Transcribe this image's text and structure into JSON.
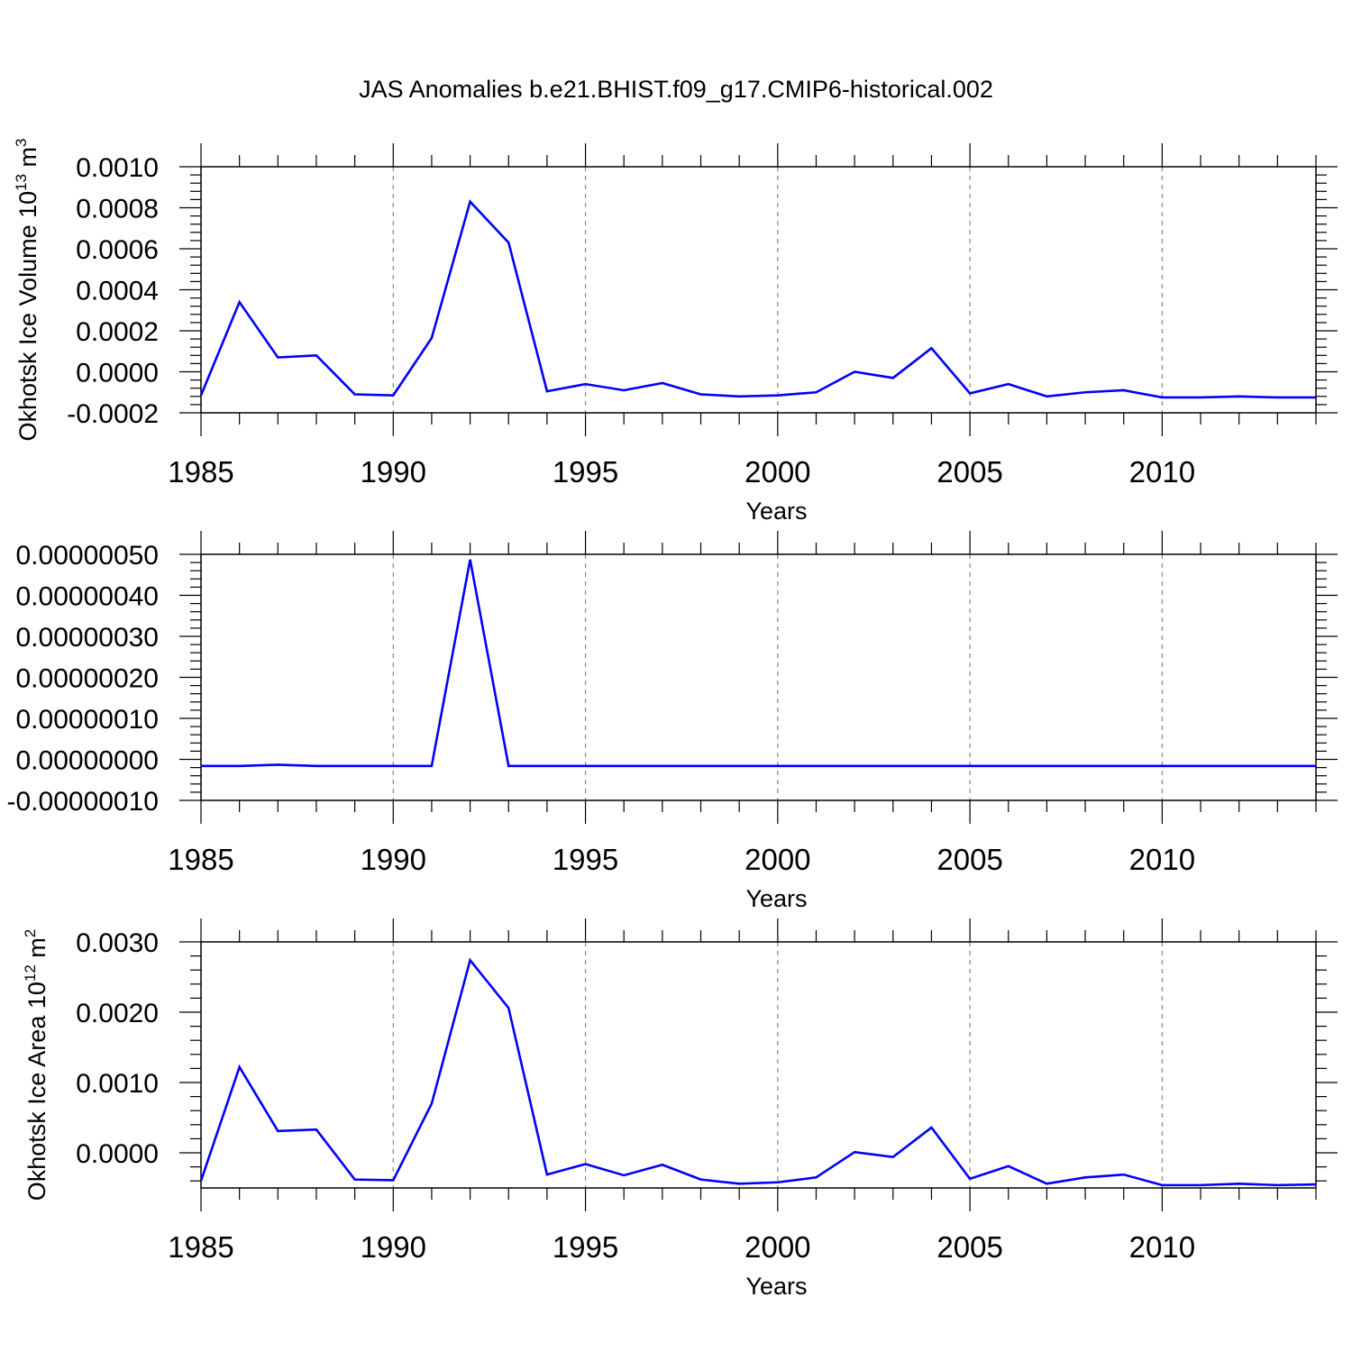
{
  "title": "JAS Anomalies b.e21.BHIST.f09_g17.CMIP6-historical.002",
  "chart_data": [
    {
      "type": "line",
      "ylabel": {
        "main": "Okhotsk Ice Volume 10",
        "sup": "13",
        "unit": " m",
        "unit_sup": "3"
      },
      "xlabel": "Years",
      "xlim": [
        1985,
        2014
      ],
      "ylim": [
        -0.0002,
        0.001
      ],
      "x_ticks": [
        "1985",
        "1990",
        "1995",
        "2000",
        "2005",
        "2010"
      ],
      "y_ticks": [
        "-0.0002",
        "0.0000",
        "0.0002",
        "0.0004",
        "0.0006",
        "0.0008",
        "0.0010"
      ],
      "grid": "dashed vertical at major x ticks",
      "series": [
        {
          "color": "#0000ff",
          "x": [
            1985,
            1986,
            1987,
            1988,
            1989,
            1990,
            1991,
            1992,
            1993,
            1994,
            1995,
            1996,
            1997,
            1998,
            1999,
            2000,
            2001,
            2002,
            2003,
            2004,
            2005,
            2006,
            2007,
            2008,
            2009,
            2010,
            2011,
            2012,
            2013,
            2014
          ],
          "y": [
            -0.000115,
            0.00034,
            7e-05,
            8e-05,
            -0.00011,
            -0.000115,
            0.000165,
            0.00083,
            0.00063,
            -9.5e-05,
            -6e-05,
            -9e-05,
            -5.5e-05,
            -0.00011,
            -0.00012,
            -0.000115,
            -0.0001,
            0.0,
            -3e-05,
            0.000115,
            -0.000105,
            -6e-05,
            -0.00012,
            -0.0001,
            -9e-05,
            -0.000125,
            -0.000125,
            -0.00012,
            -0.000125,
            -0.000125
          ]
        }
      ]
    },
    {
      "type": "line",
      "xlabel": "Years",
      "xlim": [
        1985,
        2014
      ],
      "ylim": [
        -1e-07,
        5e-07
      ],
      "x_ticks": [
        "1985",
        "1990",
        "1995",
        "2000",
        "2005",
        "2010"
      ],
      "y_ticks": [
        "-0.00000010",
        "0.00000000",
        "0.00000010",
        "0.00000020",
        "0.00000030",
        "0.00000040",
        "0.00000050"
      ],
      "grid": "dashed vertical at major x ticks",
      "series": [
        {
          "color": "#0000ff",
          "x": [
            1985,
            1986,
            1987,
            1988,
            1989,
            1990,
            1991,
            1992,
            1993,
            1994,
            1995,
            1996,
            1997,
            1998,
            1999,
            2000,
            2001,
            2002,
            2003,
            2004,
            2005,
            2006,
            2007,
            2008,
            2009,
            2010,
            2011,
            2012,
            2013,
            2014
          ],
          "y": [
            -1.6e-08,
            -1.6e-08,
            -1.3e-08,
            -1.6e-08,
            -1.6e-08,
            -1.6e-08,
            -1.6e-08,
            4.87e-07,
            -1.6e-08,
            -1.6e-08,
            -1.6e-08,
            -1.6e-08,
            -1.6e-08,
            -1.6e-08,
            -1.6e-08,
            -1.6e-08,
            -1.6e-08,
            -1.6e-08,
            -1.6e-08,
            -1.6e-08,
            -1.6e-08,
            -1.6e-08,
            -1.6e-08,
            -1.6e-08,
            -1.6e-08,
            -1.6e-08,
            -1.6e-08,
            -1.6e-08,
            -1.6e-08,
            -1.6e-08
          ]
        }
      ]
    },
    {
      "type": "line",
      "ylabel": {
        "main": "Okhotsk Ice Area 10",
        "sup": "12",
        "unit": " m",
        "unit_sup": "2"
      },
      "xlabel": "Years",
      "xlim": [
        1985,
        2014
      ],
      "ylim": [
        -0.0005,
        0.003
      ],
      "x_ticks": [
        "1985",
        "1990",
        "1995",
        "2000",
        "2005",
        "2010"
      ],
      "y_ticks": [
        "0.0000",
        "0.0010",
        "0.0020",
        "0.0030"
      ],
      "grid": "dashed vertical at major x ticks",
      "series": [
        {
          "color": "#0000ff",
          "x": [
            1985,
            1986,
            1987,
            1988,
            1989,
            1990,
            1991,
            1992,
            1993,
            1994,
            1995,
            1996,
            1997,
            1998,
            1999,
            2000,
            2001,
            2002,
            2003,
            2004,
            2005,
            2006,
            2007,
            2008,
            2009,
            2010,
            2011,
            2012,
            2013,
            2014
          ],
          "y": [
            -0.0004,
            0.00122,
            0.00031,
            0.00033,
            -0.00038,
            -0.00039,
            0.0007,
            0.00274,
            0.00206,
            -0.00031,
            -0.00016,
            -0.00032,
            -0.00017,
            -0.00038,
            -0.00044,
            -0.00042,
            -0.00035,
            1e-05,
            -6e-05,
            0.00036,
            -0.00037,
            -0.00019,
            -0.00044,
            -0.00035,
            -0.00031,
            -0.00046,
            -0.00046,
            -0.00044,
            -0.00046,
            -0.00045
          ]
        }
      ]
    }
  ]
}
